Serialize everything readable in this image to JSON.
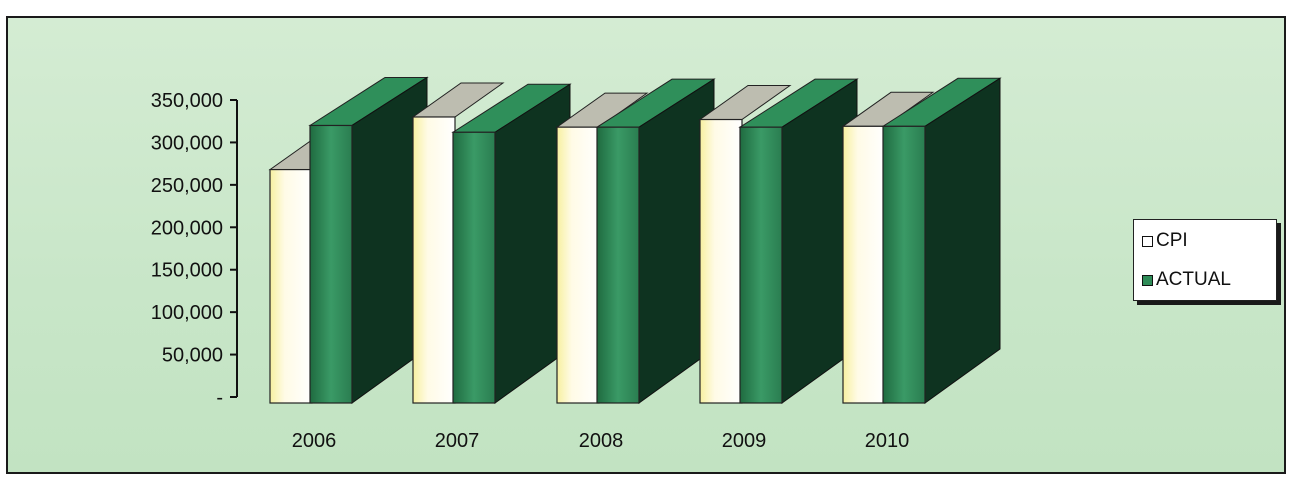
{
  "chart_data": {
    "type": "bar",
    "categories": [
      "2006",
      "2007",
      "2008",
      "2009",
      "2010"
    ],
    "series": [
      {
        "name": "CPI",
        "values": [
          268000,
          330000,
          318000,
          327000,
          319000
        ],
        "color": "#ffffff"
      },
      {
        "name": "ACTUAL",
        "values": [
          320000,
          312000,
          318000,
          318000,
          319000
        ],
        "color": "#2e8b57"
      }
    ],
    "ylim": [
      0,
      350000
    ],
    "ytick_values": [
      0,
      50000,
      100000,
      150000,
      200000,
      250000,
      300000,
      350000
    ],
    "ytick_labels": [
      "-",
      "50,000",
      "100,000",
      "150,000",
      "200,000",
      "250,000",
      "300,000",
      "350,000"
    ],
    "legend_position": "right",
    "style": "3d-column",
    "background_color": "#c8e6c8"
  }
}
